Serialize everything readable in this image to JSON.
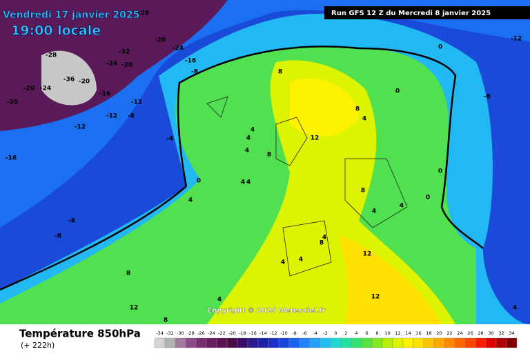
{
  "header": {
    "date": "Vendredi 17 janvier 2025",
    "time": "19:00 locale",
    "run": "Run GFS 12 Z du Mercredi 8 janvier 2025"
  },
  "copyright": "Copyright © 2025 Meteociel.fr",
  "legend": {
    "title": "Température 850hPa",
    "lead": "(+ 222h)",
    "values": [
      -34,
      -32,
      -30,
      -28,
      -26,
      -24,
      -22,
      -20,
      -18,
      -16,
      -14,
      -12,
      -10,
      -8,
      -6,
      -4,
      -2,
      0,
      2,
      4,
      6,
      8,
      10,
      12,
      14,
      16,
      18,
      20,
      22,
      24,
      26,
      28,
      30,
      32,
      34
    ],
    "colors": [
      "#d4d4d4",
      "#b4b4b4",
      "#a07aa0",
      "#8c4c8c",
      "#7a2e72",
      "#6a1e62",
      "#5a1252",
      "#4a0c46",
      "#3a0c6a",
      "#2a1a8c",
      "#1c22a6",
      "#1a30c6",
      "#1a44e0",
      "#1a62f2",
      "#2282f8",
      "#22a2f8",
      "#22c0f2",
      "#22d8d2",
      "#22e2a2",
      "#34e472",
      "#56e444",
      "#84e822",
      "#b4f002",
      "#dcf400",
      "#fff200",
      "#ffe000",
      "#ffc600",
      "#ffa800",
      "#ff8800",
      "#ff6600",
      "#ff4400",
      "#ff1a00",
      "#e00000",
      "#b00000",
      "#800000"
    ]
  },
  "map_labels": [
    -28,
    -20,
    -24,
    -32,
    -28,
    -24,
    -20,
    -16,
    -8,
    -36,
    -20,
    -24,
    -16,
    -12,
    -20,
    -20,
    -12,
    -8,
    -12,
    -4,
    -16,
    0,
    -8,
    -8,
    4,
    8,
    4,
    4,
    4,
    8,
    12,
    4,
    4,
    8,
    4,
    0,
    0,
    -8,
    -12,
    0,
    0,
    8,
    4,
    4,
    4,
    8,
    12,
    4,
    4,
    8,
    12,
    4,
    8,
    12,
    4
  ]
}
